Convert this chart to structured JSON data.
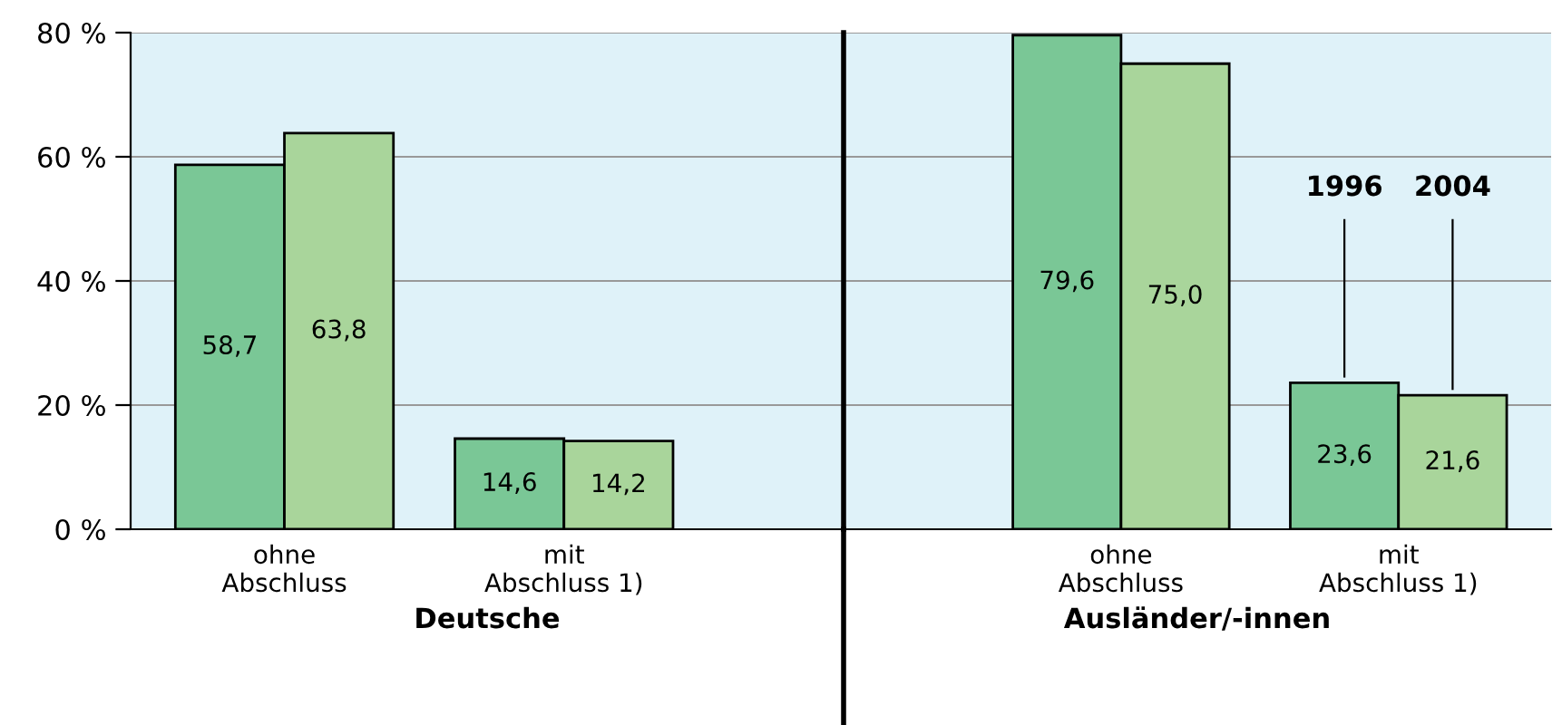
{
  "chart_data": [
    {
      "type": "bar",
      "xlabel": "Deutsche",
      "categories": [
        "ohne\nAbschluss",
        "mit\nAbschluss 1)"
      ],
      "series": [
        {
          "color": "#7ac796",
          "values": [
            58.7,
            14.6
          ],
          "value_labels": [
            "58,7",
            "14,6"
          ]
        },
        {
          "color": "#a9d59b",
          "values": [
            63.8,
            14.2
          ],
          "value_labels": [
            "63,8",
            "14,2"
          ]
        }
      ],
      "ylim": [
        0,
        80
      ],
      "yticks": [
        {
          "value": 0,
          "label": "0 %"
        },
        {
          "value": 20,
          "label": "20 %"
        },
        {
          "value": 40,
          "label": "40 %"
        },
        {
          "value": 60,
          "label": "60 %"
        },
        {
          "value": 80,
          "label": "80 %"
        }
      ],
      "grid": "y",
      "legend": false
    },
    {
      "type": "bar",
      "xlabel": "Ausländer/-innen",
      "categories": [
        "ohne\nAbschluss",
        "mit\nAbschluss 1)"
      ],
      "series": [
        {
          "name": "1996",
          "color": "#7ac796",
          "values": [
            79.6,
            23.6
          ],
          "value_labels": [
            "79,6",
            "23,6"
          ]
        },
        {
          "name": "2004",
          "color": "#a9d59b",
          "values": [
            75.0,
            21.6
          ],
          "value_labels": [
            "75,0",
            "21,6"
          ]
        }
      ],
      "ylim": [
        0,
        80
      ],
      "yticks": [
        0,
        20,
        40,
        60,
        80
      ],
      "tick_labels": "x",
      "grid": "y",
      "legend": false
    }
  ]
}
